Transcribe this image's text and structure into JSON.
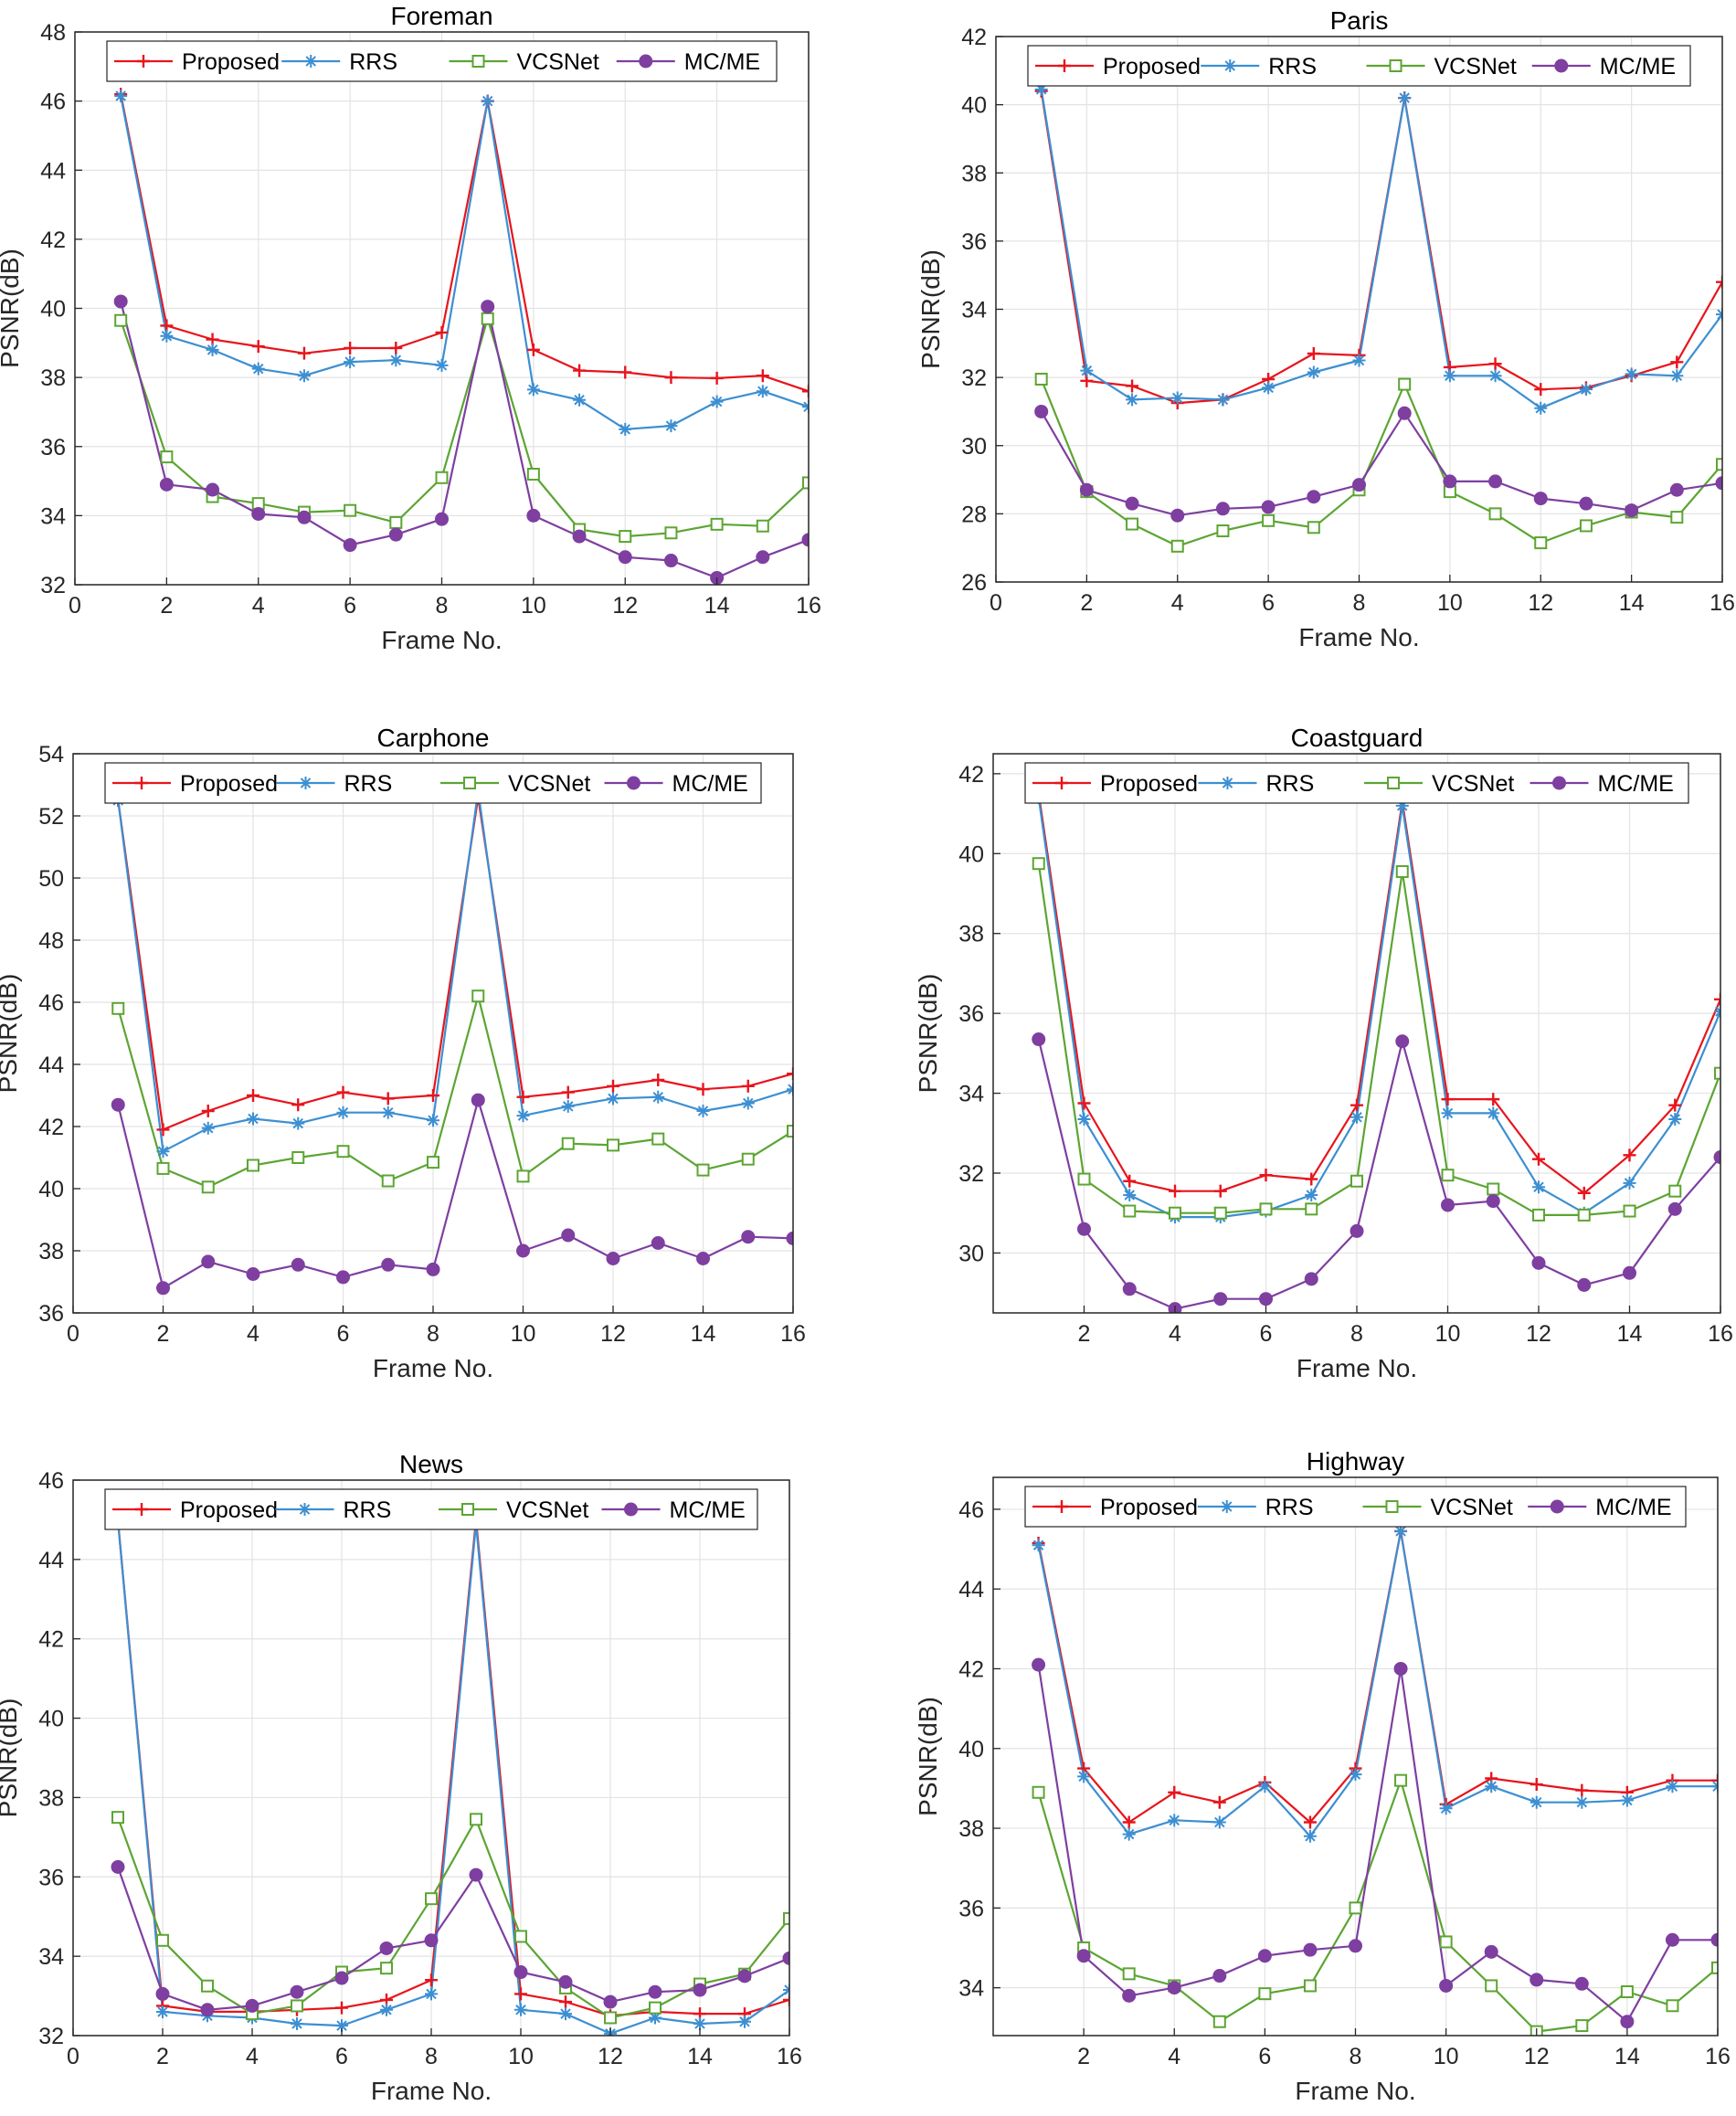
{
  "styles": {
    "series": [
      {
        "color": "#e8141c",
        "marker": "plus"
      },
      {
        "color": "#3c8fd2",
        "marker": "asterisk"
      },
      {
        "color": "#5ca533",
        "marker": "square"
      },
      {
        "color": "#7e3fa0",
        "marker": "circle"
      }
    ]
  },
  "chart_data": [
    {
      "type": "line",
      "title": "Foreman",
      "xlabel": "Frame No.",
      "ylabel": "PSNR(dB)",
      "xlim": [
        0,
        16
      ],
      "ylim": [
        32,
        48
      ],
      "xticks": [
        0,
        2,
        4,
        6,
        8,
        10,
        12,
        14,
        16
      ],
      "yticks": [
        32,
        34,
        36,
        38,
        40,
        42,
        44,
        46,
        48
      ],
      "grid": true,
      "legend": "top",
      "x": [
        1,
        2,
        3,
        4,
        5,
        6,
        7,
        8,
        9,
        10,
        11,
        12,
        13,
        14,
        15,
        16
      ],
      "series": [
        {
          "name": "Proposed",
          "values": [
            46.2,
            39.5,
            39.1,
            38.9,
            38.7,
            38.85,
            38.85,
            39.3,
            46.0,
            38.8,
            38.2,
            38.15,
            38.0,
            37.98,
            38.05,
            37.6
          ]
        },
        {
          "name": "RRS",
          "values": [
            46.15,
            39.2,
            38.8,
            38.25,
            38.05,
            38.45,
            38.5,
            38.35,
            46.0,
            37.65,
            37.35,
            36.5,
            36.6,
            37.3,
            37.6,
            37.15
          ]
        },
        {
          "name": "VCSNet",
          "values": [
            39.65,
            35.7,
            34.55,
            34.35,
            34.1,
            34.15,
            33.8,
            35.1,
            39.7,
            35.2,
            33.6,
            33.4,
            33.5,
            33.75,
            33.7,
            34.95
          ]
        },
        {
          "name": "MC/ME",
          "values": [
            40.2,
            34.9,
            34.75,
            34.05,
            33.95,
            33.15,
            33.45,
            33.9,
            40.05,
            34.0,
            33.4,
            32.8,
            32.7,
            32.2,
            32.8,
            33.3
          ]
        }
      ]
    },
    {
      "type": "line",
      "title": "Paris",
      "xlabel": "Frame No.",
      "ylabel": "PSNR(dB)",
      "xlim": [
        0,
        16
      ],
      "ylim": [
        26,
        42
      ],
      "xticks": [
        0,
        2,
        4,
        6,
        8,
        10,
        12,
        14,
        16
      ],
      "yticks": [
        26,
        28,
        30,
        32,
        34,
        36,
        38,
        40,
        42
      ],
      "grid": true,
      "legend": "top",
      "x": [
        1,
        2,
        3,
        4,
        5,
        6,
        7,
        8,
        9,
        10,
        11,
        12,
        13,
        14,
        15,
        16
      ],
      "series": [
        {
          "name": "Proposed",
          "values": [
            40.4,
            31.9,
            31.75,
            31.25,
            31.35,
            31.95,
            32.7,
            32.65,
            40.2,
            32.3,
            32.4,
            31.65,
            31.7,
            32.05,
            32.45,
            34.8
          ]
        },
        {
          "name": "RRS",
          "values": [
            40.45,
            32.2,
            31.35,
            31.4,
            31.35,
            31.7,
            32.15,
            32.5,
            40.2,
            32.05,
            32.05,
            31.1,
            31.65,
            32.1,
            32.05,
            33.85
          ]
        },
        {
          "name": "VCSNet",
          "values": [
            31.95,
            28.65,
            27.7,
            27.05,
            27.5,
            27.8,
            27.6,
            28.7,
            31.8,
            28.65,
            28.0,
            27.15,
            27.65,
            28.05,
            27.9,
            29.45
          ]
        },
        {
          "name": "MC/ME",
          "values": [
            31.0,
            28.7,
            28.3,
            27.95,
            28.15,
            28.2,
            28.5,
            28.85,
            30.95,
            28.95,
            28.95,
            28.45,
            28.3,
            28.1,
            28.7,
            28.9
          ]
        }
      ]
    },
    {
      "type": "line",
      "title": "Carphone",
      "xlabel": "Frame No.",
      "ylabel": "PSNR(dB)",
      "xlim": [
        0,
        16
      ],
      "ylim": [
        36,
        54
      ],
      "xticks": [
        0,
        2,
        4,
        6,
        8,
        10,
        12,
        14,
        16
      ],
      "yticks": [
        36,
        38,
        40,
        42,
        44,
        46,
        48,
        50,
        52,
        54
      ],
      "grid": true,
      "legend": "top",
      "x": [
        1,
        2,
        3,
        4,
        5,
        6,
        7,
        8,
        9,
        10,
        11,
        12,
        13,
        14,
        15,
        16
      ],
      "series": [
        {
          "name": "Proposed",
          "values": [
            52.5,
            41.9,
            42.5,
            43.0,
            42.7,
            43.1,
            42.9,
            43.0,
            52.6,
            42.95,
            43.1,
            43.3,
            43.5,
            43.2,
            43.3,
            43.7
          ]
        },
        {
          "name": "RRS",
          "values": [
            52.5,
            41.2,
            41.95,
            42.25,
            42.1,
            42.45,
            42.45,
            42.2,
            52.8,
            42.35,
            42.65,
            42.9,
            42.95,
            42.5,
            42.75,
            43.2
          ]
        },
        {
          "name": "VCSNet",
          "values": [
            45.8,
            40.65,
            40.05,
            40.75,
            41.0,
            41.2,
            40.25,
            40.85,
            46.2,
            40.4,
            41.45,
            41.4,
            41.6,
            40.6,
            40.95,
            41.85
          ]
        },
        {
          "name": "MC/ME",
          "values": [
            42.7,
            36.8,
            37.65,
            37.25,
            37.55,
            37.15,
            37.55,
            37.4,
            42.85,
            38.0,
            38.5,
            37.75,
            38.25,
            37.75,
            38.45,
            38.4
          ]
        }
      ]
    },
    {
      "type": "line",
      "title": "Coastguard",
      "xlabel": "Frame No.",
      "ylabel": "PSNR(dB)",
      "xlim": [
        0,
        16
      ],
      "ylim": [
        28.5,
        42.5
      ],
      "xticks": [
        2,
        4,
        6,
        8,
        10,
        12,
        14,
        16
      ],
      "yticks": [
        30,
        32,
        34,
        36,
        38,
        40,
        42
      ],
      "grid": true,
      "legend": "top",
      "x": [
        1,
        2,
        3,
        4,
        5,
        6,
        7,
        8,
        9,
        10,
        11,
        12,
        13,
        14,
        15,
        16
      ],
      "series": [
        {
          "name": "Proposed",
          "values": [
            41.5,
            33.75,
            31.8,
            31.55,
            31.55,
            31.95,
            31.85,
            33.7,
            41.3,
            33.85,
            33.85,
            32.35,
            31.5,
            32.45,
            33.7,
            36.35
          ]
        },
        {
          "name": "RRS",
          "values": [
            41.4,
            33.35,
            31.45,
            30.9,
            30.9,
            31.05,
            31.45,
            33.4,
            41.2,
            33.5,
            33.5,
            31.65,
            31.0,
            31.75,
            33.35,
            36.05
          ]
        },
        {
          "name": "VCSNet",
          "values": [
            39.75,
            31.85,
            31.05,
            31.0,
            31.0,
            31.1,
            31.1,
            31.8,
            39.55,
            31.95,
            31.6,
            30.95,
            30.95,
            31.05,
            31.55,
            34.5
          ]
        },
        {
          "name": "MC/ME",
          "values": [
            35.35,
            30.6,
            29.1,
            28.6,
            28.85,
            28.85,
            29.35,
            30.55,
            35.3,
            31.2,
            31.3,
            29.75,
            29.2,
            29.5,
            31.1,
            32.4
          ]
        }
      ]
    },
    {
      "type": "line",
      "title": "News",
      "xlabel": "Frame No.",
      "ylabel": "PSNR(dB)",
      "xlim": [
        0,
        16
      ],
      "ylim": [
        32,
        46
      ],
      "xticks": [
        0,
        2,
        4,
        6,
        8,
        10,
        12,
        14,
        16
      ],
      "yticks": [
        32,
        34,
        36,
        38,
        40,
        42,
        44,
        46
      ],
      "grid": true,
      "legend": "top",
      "x": [
        1,
        2,
        3,
        4,
        5,
        6,
        7,
        8,
        9,
        10,
        11,
        12,
        13,
        14,
        15,
        16
      ],
      "series": [
        {
          "name": "Proposed",
          "values": [
            45.0,
            32.75,
            32.6,
            32.6,
            32.65,
            32.7,
            32.9,
            33.4,
            45.0,
            33.05,
            32.85,
            32.5,
            32.6,
            32.55,
            32.55,
            32.9
          ]
        },
        {
          "name": "RRS",
          "values": [
            45.0,
            32.6,
            32.5,
            32.45,
            32.3,
            32.25,
            32.65,
            33.05,
            44.9,
            32.65,
            32.55,
            32.05,
            32.45,
            32.3,
            32.35,
            33.15
          ]
        },
        {
          "name": "VCSNet",
          "values": [
            37.5,
            34.4,
            33.25,
            32.55,
            32.75,
            33.6,
            33.7,
            35.45,
            37.45,
            34.5,
            33.2,
            32.45,
            32.7,
            33.3,
            33.55,
            34.95
          ]
        },
        {
          "name": "MC/ME",
          "values": [
            36.25,
            33.05,
            32.65,
            32.75,
            33.1,
            33.45,
            34.2,
            34.4,
            36.05,
            33.6,
            33.35,
            32.85,
            33.1,
            33.15,
            33.5,
            33.95
          ]
        }
      ]
    },
    {
      "type": "line",
      "title": "Highway",
      "xlabel": "Frame No.",
      "ylabel": "PSNR(dB)",
      "xlim": [
        0,
        16
      ],
      "ylim": [
        32.8,
        46.8
      ],
      "xticks": [
        2,
        4,
        6,
        8,
        10,
        12,
        14,
        16
      ],
      "yticks": [
        34,
        36,
        38,
        40,
        42,
        44,
        46
      ],
      "grid": true,
      "legend": "top",
      "x": [
        1,
        2,
        3,
        4,
        5,
        6,
        7,
        8,
        9,
        10,
        11,
        12,
        13,
        14,
        15,
        16
      ],
      "series": [
        {
          "name": "Proposed",
          "values": [
            45.15,
            39.5,
            38.15,
            38.9,
            38.65,
            39.15,
            38.15,
            39.5,
            45.45,
            38.6,
            39.25,
            39.1,
            38.95,
            38.9,
            39.2,
            39.2
          ]
        },
        {
          "name": "RRS",
          "values": [
            45.1,
            39.3,
            37.85,
            38.2,
            38.15,
            39.05,
            37.8,
            39.35,
            45.45,
            38.5,
            39.05,
            38.65,
            38.65,
            38.7,
            39.05,
            39.05
          ]
        },
        {
          "name": "VCSNet",
          "values": [
            38.9,
            35.0,
            34.35,
            34.05,
            33.15,
            33.85,
            34.05,
            36.0,
            39.2,
            35.15,
            34.05,
            32.9,
            33.05,
            33.9,
            33.55,
            34.5
          ]
        },
        {
          "name": "MC/ME",
          "values": [
            42.1,
            34.8,
            33.8,
            34.0,
            34.3,
            34.8,
            34.95,
            35.05,
            42.0,
            34.05,
            34.9,
            34.2,
            34.1,
            33.15,
            35.2,
            35.2
          ]
        }
      ]
    }
  ]
}
